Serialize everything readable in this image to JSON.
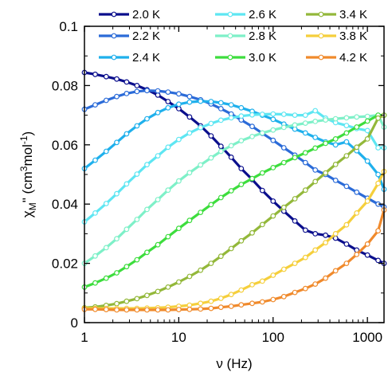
{
  "chart_data": {
    "type": "line",
    "xscale": "log",
    "xlim": [
      1,
      1500
    ],
    "ylim": [
      0,
      0.1
    ],
    "xlabel": "ν (Hz)",
    "ylabel": {
      "main": "χ",
      "sub": "M",
      "prime": "\"",
      "unit_open": " (cm",
      "unit_sup1": "3",
      "unit_mid": "mol",
      "unit_sup2": "-1",
      "unit_close": ")"
    },
    "x_ticks": [
      1,
      10,
      100,
      1000
    ],
    "x_tick_labels": [
      "1",
      "10",
      "100",
      "1000"
    ],
    "y_ticks": [
      0,
      0.02,
      0.04,
      0.06,
      0.08,
      0.1
    ],
    "y_tick_labels": [
      "0",
      "0.02",
      "0.04",
      "0.06",
      "0.08",
      "0.1"
    ],
    "legend_position": "top",
    "grid": false,
    "x": [
      1,
      1.3,
      1.7,
      2.2,
      2.8,
      3.6,
      4.6,
      6,
      7.7,
      10,
      13,
      17,
      22,
      28,
      36,
      46,
      60,
      77,
      100,
      130,
      170,
      220,
      280,
      360,
      460,
      600,
      770,
      1000,
      1300,
      1500
    ],
    "series": [
      {
        "name": "2.0 K",
        "color": "#0a0e8c",
        "values": [
          0.0844,
          0.0838,
          0.083,
          0.0822,
          0.0812,
          0.08,
          0.0786,
          0.0768,
          0.0746,
          0.0722,
          0.0694,
          0.0664,
          0.063,
          0.0595,
          0.0558,
          0.052,
          0.0483,
          0.0446,
          0.041,
          0.0376,
          0.0343,
          0.0312,
          0.03,
          0.0295,
          0.0285,
          0.0265,
          0.0245,
          0.0228,
          0.021,
          0.02
        ]
      },
      {
        "name": "2.2 K",
        "color": "#2b6bd8",
        "values": [
          0.072,
          0.0735,
          0.075,
          0.0763,
          0.0773,
          0.078,
          0.0783,
          0.0782,
          0.0778,
          0.0772,
          0.0763,
          0.0752,
          0.0738,
          0.0722,
          0.0704,
          0.0684,
          0.0662,
          0.0639,
          0.0615,
          0.059,
          0.0565,
          0.054,
          0.0515,
          0.05,
          0.048,
          0.046,
          0.044,
          0.042,
          0.04,
          0.039
        ]
      },
      {
        "name": "2.4 K",
        "color": "#1fb0ec",
        "values": [
          0.052,
          0.0548,
          0.0578,
          0.0608,
          0.0637,
          0.0664,
          0.0688,
          0.0709,
          0.0725,
          0.0737,
          0.0744,
          0.0747,
          0.0746,
          0.0742,
          0.0735,
          0.0725,
          0.0713,
          0.07,
          0.0686,
          0.067,
          0.0653,
          0.064,
          0.0625,
          0.061,
          0.06,
          0.061,
          0.058,
          0.0545,
          0.05,
          0.045
        ]
      },
      {
        "name": "2.6 K",
        "color": "#5ee6f2",
        "values": [
          0.034,
          0.037,
          0.0402,
          0.0435,
          0.0468,
          0.0501,
          0.0533,
          0.0563,
          0.0592,
          0.0618,
          0.064,
          0.0658,
          0.0672,
          0.0683,
          0.0691,
          0.0697,
          0.0701,
          0.0703,
          0.0704,
          0.0703,
          0.07,
          0.07,
          0.0715,
          0.069,
          0.0675,
          0.0665,
          0.0655,
          0.0648,
          0.059,
          0.059
        ]
      },
      {
        "name": "2.8 K",
        "color": "#7ef0c8",
        "values": [
          0.02,
          0.0225,
          0.0253,
          0.0283,
          0.0315,
          0.0348,
          0.0382,
          0.0415,
          0.0447,
          0.0478,
          0.0506,
          0.0532,
          0.0556,
          0.0578,
          0.0597,
          0.0614,
          0.0628,
          0.064,
          0.065,
          0.0659,
          0.0667,
          0.0673,
          0.0679,
          0.0684,
          0.0688,
          0.0691,
          0.0694,
          0.0696,
          0.07,
          0.066
        ]
      },
      {
        "name": "3.0 K",
        "color": "#3ddd3d",
        "values": [
          0.012,
          0.0134,
          0.015,
          0.0168,
          0.0189,
          0.0212,
          0.0237,
          0.0263,
          0.029,
          0.0318,
          0.0345,
          0.0372,
          0.0398,
          0.0422,
          0.0445,
          0.0466,
          0.0486,
          0.0505,
          0.0523,
          0.054,
          0.0557,
          0.0573,
          0.0589,
          0.0605,
          0.062,
          0.064,
          0.066,
          0.068,
          0.07,
          0.07
        ]
      },
      {
        "name": "3.4 K",
        "color": "#93b83a",
        "values": [
          0.005,
          0.0053,
          0.0058,
          0.0064,
          0.0072,
          0.0081,
          0.0092,
          0.0105,
          0.012,
          0.0137,
          0.0156,
          0.0177,
          0.02,
          0.0224,
          0.025,
          0.0276,
          0.0303,
          0.0331,
          0.036,
          0.0389,
          0.0418,
          0.0447,
          0.0476,
          0.0505,
          0.0534,
          0.0563,
          0.0592,
          0.062,
          0.069,
          0.07
        ]
      },
      {
        "name": "3.8 K",
        "color": "#f5cf3c",
        "values": [
          0.0048,
          0.0048,
          0.0048,
          0.0048,
          0.0048,
          0.0048,
          0.0049,
          0.005,
          0.0052,
          0.0055,
          0.0059,
          0.0065,
          0.0072,
          0.0082,
          0.0095,
          0.011,
          0.0128,
          0.014,
          0.016,
          0.018,
          0.02,
          0.022,
          0.0245,
          0.027,
          0.03,
          0.033,
          0.037,
          0.041,
          0.047,
          0.051
        ]
      },
      {
        "name": "4.2 K",
        "color": "#f08a2c",
        "values": [
          0.0045,
          0.0045,
          0.0044,
          0.0043,
          0.0043,
          0.0043,
          0.0043,
          0.0043,
          0.0043,
          0.0044,
          0.0045,
          0.0046,
          0.0048,
          0.0052,
          0.0055,
          0.006,
          0.0065,
          0.007,
          0.0078,
          0.0088,
          0.0102,
          0.0115,
          0.013,
          0.015,
          0.0175,
          0.02,
          0.023,
          0.0265,
          0.031,
          0.038
        ]
      }
    ]
  }
}
